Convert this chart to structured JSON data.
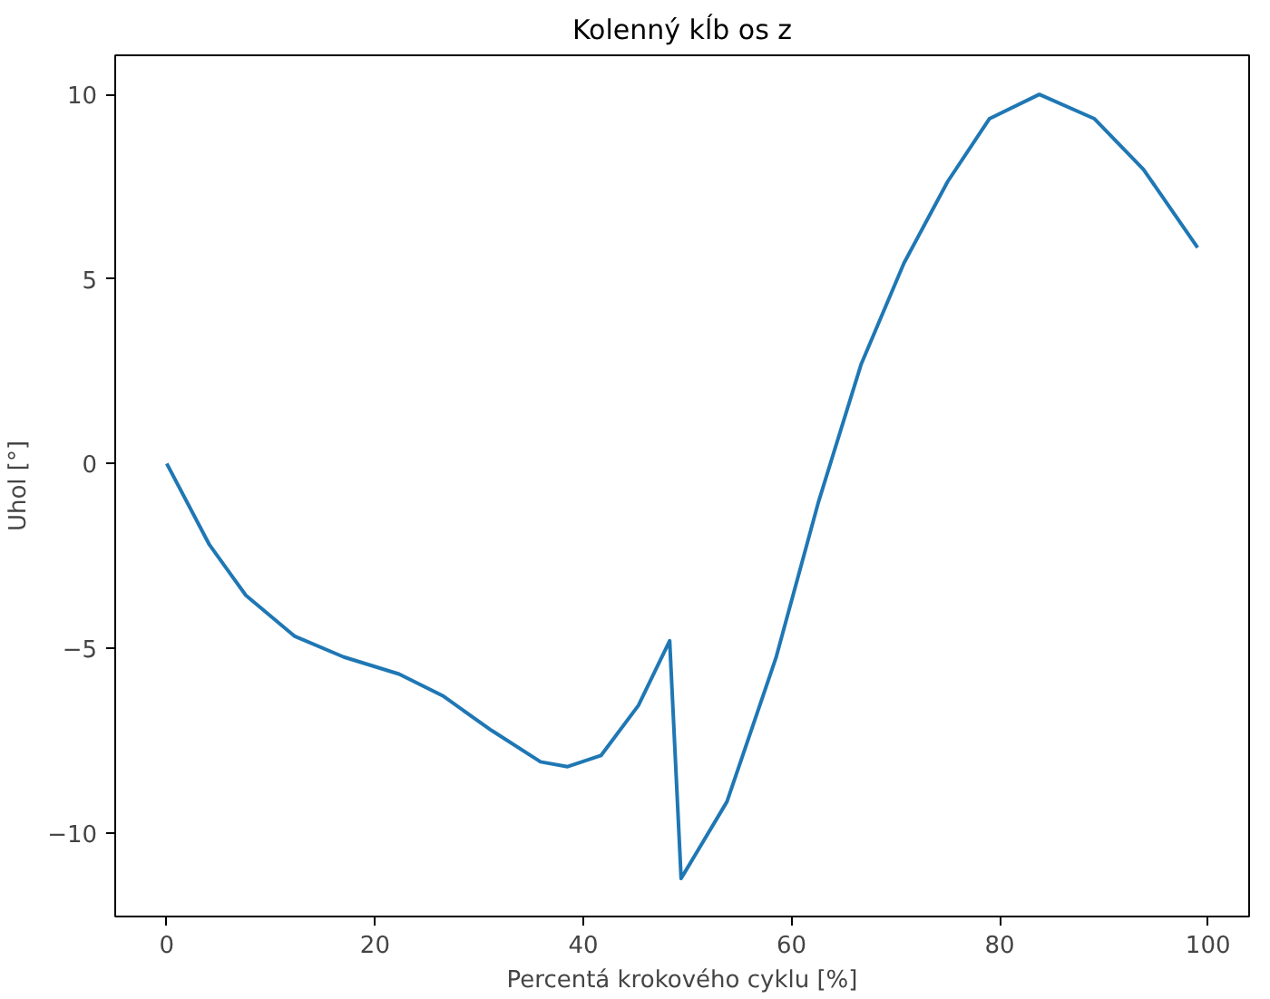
{
  "chart_data": {
    "type": "line",
    "title": "Kolenný kĺb os z",
    "xlabel": "Percentá krokového cyklu [%]",
    "ylabel": "Uhol [°]",
    "xlim": [
      -4.95,
      103.95
    ],
    "ylim": [
      -12.27,
      11.06
    ],
    "xticks": [
      0,
      20,
      40,
      60,
      80,
      100
    ],
    "yticks": [
      {
        "value": -10,
        "label": "−10"
      },
      {
        "value": -5,
        "label": "−5"
      },
      0,
      5,
      10
    ],
    "grid": false,
    "series": [
      {
        "color": "#1f77b4",
        "x": [
          0,
          4.1,
          7.6,
          12.3,
          17.0,
          22.3,
          26.5,
          31.2,
          35.9,
          38.5,
          41.7,
          45.3,
          48.3,
          49.4,
          53.8,
          58.5,
          62.6,
          66.7,
          70.8,
          75.0,
          79.0,
          83.8,
          89.1,
          93.8,
          99
        ],
        "values": [
          0,
          -2.2,
          -3.57,
          -4.68,
          -5.24,
          -5.7,
          -6.29,
          -7.23,
          -8.08,
          -8.21,
          -7.91,
          -6.55,
          -4.8,
          -11.24,
          -9.16,
          -5.27,
          -1.03,
          2.7,
          5.43,
          7.64,
          9.34,
          10.0,
          9.34,
          7.97,
          5.85
        ]
      }
    ]
  }
}
